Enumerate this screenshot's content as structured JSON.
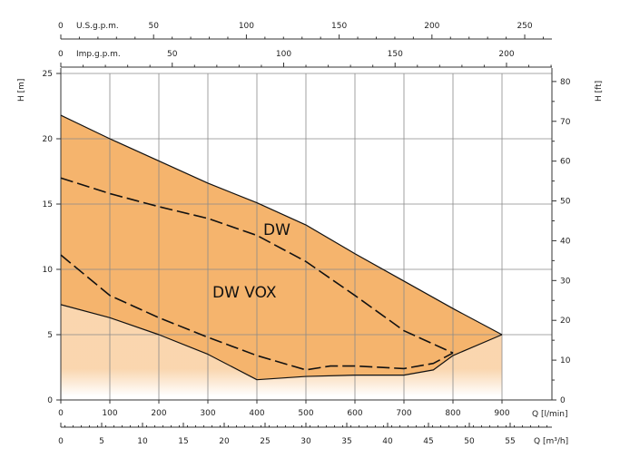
{
  "chart_data": {
    "type": "area",
    "title": "",
    "colors": {
      "fill": "#f5b46d",
      "grid": "#8a8a8a",
      "axis": "#333333",
      "line": "#111111"
    },
    "top_axes": [
      {
        "label": "U.S.g.p.m.",
        "zero": "0",
        "ticks": [
          "50",
          "100",
          "150",
          "200",
          "250"
        ],
        "values": [
          50,
          100,
          150,
          200,
          250
        ],
        "units_per_lmin": 0.26417
      },
      {
        "label": "Imp.g.p.m.",
        "zero": "0",
        "ticks": [
          "50",
          "100",
          "150",
          "200"
        ],
        "values": [
          50,
          100,
          150,
          200
        ],
        "units_per_lmin": 0.21997
      }
    ],
    "x_axis": {
      "label": "Q [l/min]",
      "xlim": [
        0,
        1000
      ],
      "ticks": [
        "0",
        "100",
        "200",
        "300",
        "400",
        "500",
        "600",
        "700",
        "800",
        "900"
      ],
      "values": [
        0,
        100,
        200,
        300,
        400,
        500,
        600,
        700,
        800,
        900
      ]
    },
    "x_axis_m3h": {
      "label": "Q [m³/h]",
      "ticks": [
        "0",
        "5",
        "10",
        "15",
        "20",
        "25",
        "30",
        "35",
        "40",
        "45",
        "50",
        "55"
      ],
      "values": [
        0,
        5,
        10,
        15,
        20,
        25,
        30,
        35,
        40,
        45,
        50,
        55
      ]
    },
    "y_axis_left": {
      "label": "H [m]",
      "ylim": [
        0,
        25
      ],
      "ticks": [
        "0",
        "5",
        "10",
        "15",
        "20",
        "25"
      ],
      "values": [
        0,
        5,
        10,
        15,
        20,
        25
      ]
    },
    "y_axis_right": {
      "label": "H [ft]",
      "ticks": [
        "0",
        "10",
        "20",
        "30",
        "40",
        "50",
        "60",
        "70",
        "80"
      ],
      "values": [
        0,
        10,
        20,
        30,
        40,
        50,
        60,
        70,
        80
      ],
      "ft_per_m": 3.2808
    },
    "series": [
      {
        "name": "DW",
        "style": "solid-upper",
        "x": [
          0,
          100,
          300,
          400,
          500,
          600,
          700,
          800,
          900
        ],
        "y": [
          21.8,
          20.0,
          16.6,
          15.1,
          13.4,
          11.2,
          9.1,
          7.0,
          5.0
        ]
      },
      {
        "name": "DW",
        "style": "solid-lower",
        "x": [
          0,
          100,
          200,
          300,
          400,
          500,
          600,
          700,
          760,
          800,
          900
        ],
        "y": [
          7.3,
          6.3,
          5.0,
          3.5,
          1.55,
          1.8,
          1.9,
          1.9,
          2.3,
          3.4,
          5.0
        ]
      },
      {
        "name": "DW VOX",
        "style": "dashed-upper",
        "x": [
          0,
          100,
          200,
          300,
          400,
          500,
          600,
          700,
          800
        ],
        "y": [
          17.0,
          15.8,
          14.8,
          13.9,
          12.6,
          10.6,
          8.0,
          5.3,
          3.6
        ]
      },
      {
        "name": "DW VOX",
        "style": "dashed-lower",
        "x": [
          0,
          100,
          200,
          300,
          400,
          500,
          550,
          600,
          700,
          760,
          800
        ],
        "y": [
          11.1,
          8.0,
          6.3,
          4.8,
          3.4,
          2.3,
          2.6,
          2.6,
          2.4,
          2.8,
          3.6
        ]
      }
    ],
    "annotations": [
      "DW",
      "DW VOX"
    ],
    "envelope_x": [
      0,
      100,
      300,
      400,
      500,
      600,
      700,
      800,
      900
    ],
    "envelope_y": [
      21.8,
      20.0,
      16.6,
      15.1,
      13.4,
      11.2,
      9.1,
      7.0,
      5.0
    ]
  }
}
